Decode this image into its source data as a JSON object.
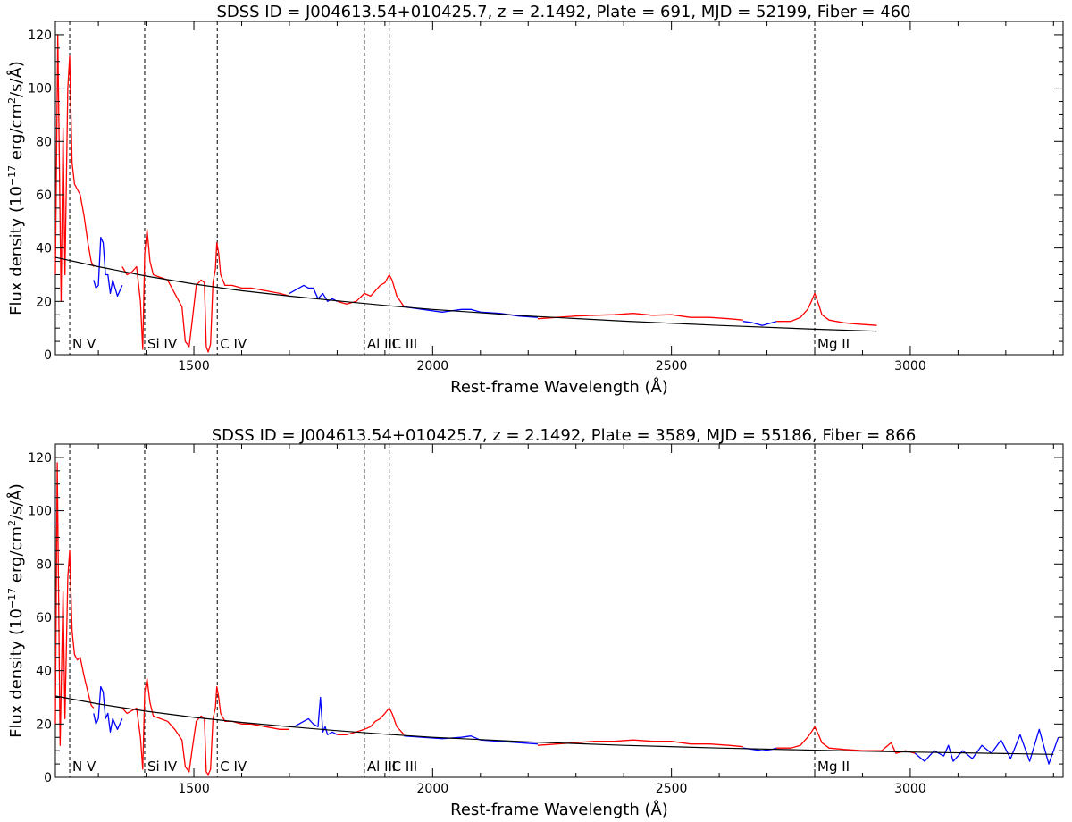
{
  "chart_data": [
    {
      "type": "line",
      "title": "SDSS ID = J004613.54+010425.7, z = 2.1492, Plate = 691, MJD = 52199, Fiber = 460",
      "xlabel": "Rest-frame Wavelength (Å)",
      "ylabel": "Flux density (10^-17 erg/cm^2/s/Å)",
      "xlim": [
        1210,
        3320
      ],
      "ylim": [
        0,
        125
      ],
      "xticks": [
        1500,
        2000,
        2500,
        3000
      ],
      "yticks": [
        0,
        20,
        40,
        60,
        80,
        100,
        120
      ],
      "grid": false,
      "line_markers": [
        {
          "label": "N V",
          "x": 1240
        },
        {
          "label": "Si IV",
          "x": 1397
        },
        {
          "label": "C IV",
          "x": 1549
        },
        {
          "label": "Al III",
          "x": 1857
        },
        {
          "label": "C III",
          "x": 1909
        },
        {
          "label": "Mg II",
          "x": 2800
        }
      ],
      "continuum": {
        "color": "#000000",
        "x": [
          1210,
          1300,
          1400,
          1500,
          1600,
          1700,
          1800,
          1900,
          2000,
          2200,
          2400,
          2600,
          2800,
          2930
        ],
        "y": [
          36.5,
          33,
          29.5,
          26.5,
          24,
          22,
          20.2,
          18.5,
          17,
          14.5,
          12.6,
          11,
          9.6,
          8.8
        ]
      },
      "series": [
        {
          "color": "#ff0000",
          "x": [
            1210,
            1215,
            1222,
            1226,
            1230,
            1236,
            1240,
            1245,
            1250,
            1256,
            1262,
            1270,
            1278,
            1285,
            1290
          ],
          "y": [
            30,
            120,
            20,
            85,
            30,
            100,
            112,
            72,
            64,
            62,
            60,
            52,
            42,
            35,
            33
          ]
        },
        {
          "color": "#0000ff",
          "x": [
            1290,
            1295,
            1300,
            1305,
            1310,
            1315,
            1320,
            1325,
            1330,
            1340,
            1350
          ],
          "y": [
            28,
            25,
            26,
            44,
            42,
            30,
            30,
            23,
            28,
            22,
            26
          ]
        },
        {
          "color": "#ff0000",
          "x": [
            1350,
            1360,
            1370,
            1380,
            1388,
            1393,
            1397,
            1402,
            1408,
            1415,
            1430,
            1445,
            1460,
            1475,
            1482,
            1490,
            1496,
            1505,
            1515,
            1522,
            1526,
            1530,
            1535,
            1540,
            1545,
            1548,
            1552,
            1556,
            1565,
            1580,
            1600,
            1620,
            1650,
            1680,
            1700
          ],
          "y": [
            33,
            30,
            31,
            33,
            20,
            2,
            38,
            47,
            35,
            30,
            29,
            28,
            23,
            18,
            5,
            3,
            12,
            26,
            28,
            27,
            3,
            1,
            4,
            27,
            32,
            42,
            38,
            30,
            26,
            26,
            25,
            25,
            24,
            23,
            22
          ]
        },
        {
          "color": "#0000ff",
          "x": [
            1700,
            1710,
            1720,
            1730,
            1740,
            1750,
            1760,
            1770,
            1780,
            1790,
            1800
          ],
          "y": [
            23,
            24,
            25,
            26,
            25,
            25,
            21,
            23,
            20,
            21,
            20
          ]
        },
        {
          "color": "#ff0000",
          "x": [
            1800,
            1820,
            1840,
            1857,
            1870,
            1880,
            1890,
            1900,
            1909,
            1915,
            1925,
            1940
          ],
          "y": [
            20,
            19,
            20,
            23,
            22,
            24,
            26,
            27,
            30,
            28,
            22,
            18
          ]
        },
        {
          "color": "#0000ff",
          "x": [
            1940,
            1980,
            2020,
            2060,
            2080,
            2100,
            2140,
            2180,
            2220
          ],
          "y": [
            18,
            17,
            16,
            17,
            17,
            16,
            15.5,
            14.5,
            14
          ]
        },
        {
          "color": "#ff0000",
          "x": [
            2220,
            2260,
            2300,
            2340,
            2380,
            2420,
            2460,
            2500,
            2540,
            2580,
            2620,
            2650
          ],
          "y": [
            13.5,
            14,
            14.5,
            14.8,
            15,
            15.5,
            14.8,
            15,
            14,
            14,
            13.5,
            13
          ]
        },
        {
          "color": "#0000ff",
          "x": [
            2650,
            2670,
            2690,
            2710,
            2720
          ],
          "y": [
            12.5,
            12,
            11,
            12,
            12.5
          ]
        },
        {
          "color": "#ff0000",
          "x": [
            2720,
            2750,
            2770,
            2785,
            2793,
            2800,
            2808,
            2815,
            2830,
            2860,
            2890,
            2930
          ],
          "y": [
            12.5,
            12.5,
            14,
            17,
            20,
            23,
            19,
            15,
            13,
            12,
            11.5,
            11
          ]
        }
      ]
    },
    {
      "type": "line",
      "title": "SDSS ID = J004613.54+010425.7, z = 2.1492, Plate = 3589, MJD = 55186, Fiber = 866",
      "xlabel": "Rest-frame Wavelength (Å)",
      "ylabel": "Flux density (10^-17 erg/cm^2/s/Å)",
      "xlim": [
        1210,
        3320
      ],
      "ylim": [
        0,
        125
      ],
      "xticks": [
        1500,
        2000,
        2500,
        3000
      ],
      "yticks": [
        0,
        20,
        40,
        60,
        80,
        100,
        120
      ],
      "grid": false,
      "line_markers": [
        {
          "label": "N V",
          "x": 1240
        },
        {
          "label": "Si IV",
          "x": 1397
        },
        {
          "label": "C IV",
          "x": 1549
        },
        {
          "label": "Al III",
          "x": 1857
        },
        {
          "label": "C III",
          "x": 1909
        },
        {
          "label": "Mg II",
          "x": 2800
        }
      ],
      "continuum": {
        "color": "#000000",
        "x": [
          1210,
          1300,
          1400,
          1500,
          1600,
          1700,
          1800,
          1900,
          2000,
          2200,
          2400,
          2600,
          2800,
          3000,
          3200,
          3300
        ],
        "y": [
          30.5,
          27.5,
          24.8,
          22.5,
          20.6,
          19,
          17.5,
          16.2,
          15,
          13.3,
          12,
          11,
          10.2,
          9.5,
          8.9,
          8.6
        ]
      },
      "series": [
        {
          "color": "#ff0000",
          "x": [
            1210,
            1214,
            1220,
            1226,
            1230,
            1236,
            1240,
            1245,
            1250,
            1256,
            1262,
            1270,
            1278,
            1285,
            1290
          ],
          "y": [
            20,
            118,
            12,
            70,
            22,
            75,
            85,
            55,
            46,
            44,
            45,
            38,
            32,
            27,
            26
          ]
        },
        {
          "color": "#0000ff",
          "x": [
            1290,
            1295,
            1300,
            1305,
            1310,
            1315,
            1320,
            1325,
            1330,
            1340,
            1350
          ],
          "y": [
            24,
            20,
            22,
            34,
            32,
            22,
            24,
            17,
            22,
            18,
            22
          ]
        },
        {
          "color": "#ff0000",
          "x": [
            1350,
            1360,
            1370,
            1380,
            1388,
            1393,
            1397,
            1402,
            1408,
            1415,
            1430,
            1445,
            1460,
            1475,
            1482,
            1490,
            1496,
            1505,
            1515,
            1522,
            1526,
            1530,
            1535,
            1540,
            1545,
            1548,
            1552,
            1556,
            1565,
            1580,
            1600,
            1620,
            1650,
            1680,
            1700
          ],
          "y": [
            26,
            24,
            25,
            26,
            15,
            3,
            32,
            37,
            28,
            23,
            22,
            21,
            18,
            14,
            4,
            2,
            10,
            21,
            23,
            22,
            2,
            1,
            3,
            22,
            26,
            34,
            30,
            24,
            21,
            21,
            20,
            20,
            19,
            18,
            18
          ]
        },
        {
          "color": "#0000ff",
          "x": [
            1700,
            1710,
            1720,
            1730,
            1740,
            1750,
            1760,
            1765,
            1770,
            1775,
            1780,
            1790,
            1800
          ],
          "y": [
            19,
            19,
            20,
            21,
            22,
            20,
            19,
            30,
            17,
            19,
            16,
            17,
            16
          ]
        },
        {
          "color": "#ff0000",
          "x": [
            1800,
            1820,
            1840,
            1857,
            1870,
            1880,
            1890,
            1900,
            1909,
            1915,
            1925,
            1940
          ],
          "y": [
            16,
            16,
            17,
            18,
            19,
            21,
            22,
            24,
            26,
            24,
            19,
            16
          ]
        },
        {
          "color": "#0000ff",
          "x": [
            1940,
            1980,
            2020,
            2060,
            2080,
            2100,
            2140,
            2180,
            2220
          ],
          "y": [
            15.5,
            15,
            14.5,
            15,
            15.5,
            14,
            13.5,
            13,
            12.5
          ]
        },
        {
          "color": "#ff0000",
          "x": [
            2220,
            2260,
            2300,
            2340,
            2380,
            2420,
            2460,
            2500,
            2540,
            2580,
            2620,
            2650
          ],
          "y": [
            12,
            12.5,
            13,
            13.5,
            13.5,
            14,
            13.5,
            13.5,
            12.5,
            12.5,
            12,
            11.5
          ]
        },
        {
          "color": "#0000ff",
          "x": [
            2650,
            2670,
            2690,
            2710,
            2720
          ],
          "y": [
            11,
            10.5,
            10,
            10.5,
            11
          ]
        },
        {
          "color": "#ff0000",
          "x": [
            2720,
            2750,
            2770,
            2785,
            2793,
            2800,
            2808,
            2815,
            2830,
            2860,
            2900,
            2940,
            2960,
            2970,
            2990,
            3010
          ],
          "y": [
            11,
            11,
            12,
            15,
            17,
            19,
            16,
            13,
            11,
            10.5,
            10,
            10,
            13,
            9,
            10,
            9
          ]
        },
        {
          "color": "#0000ff",
          "x": [
            3010,
            3030,
            3050,
            3070,
            3080,
            3090,
            3110,
            3130,
            3150,
            3170,
            3190,
            3210,
            3230,
            3250,
            3270,
            3290,
            3310
          ],
          "y": [
            9,
            6,
            10,
            8,
            12,
            6,
            10,
            7,
            12,
            9,
            14,
            7,
            16,
            6,
            18,
            5,
            15
          ]
        }
      ]
    }
  ]
}
